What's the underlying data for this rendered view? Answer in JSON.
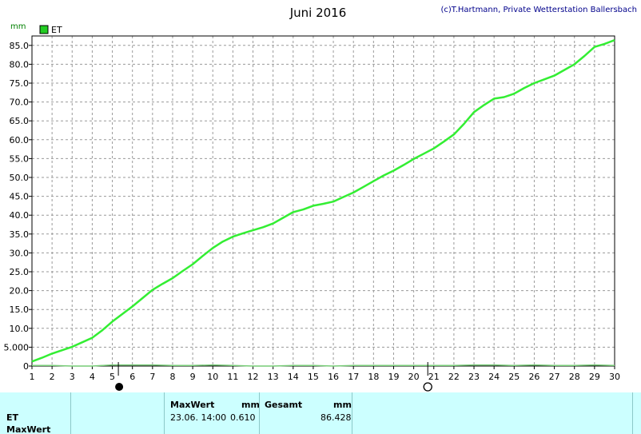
{
  "chart_data": {
    "type": "line",
    "title": "Juni 2016",
    "copyright": "(c)T.Hartmann, Private Wetterstation Ballersbach",
    "ylabel": "mm",
    "xlim": [
      1,
      30
    ],
    "ylim": [
      0,
      87.5
    ],
    "grid": true,
    "legend_position": "top-left",
    "x_ticks": [
      1,
      2,
      3,
      4,
      5,
      6,
      7,
      8,
      9,
      10,
      11,
      12,
      13,
      14,
      15,
      16,
      17,
      18,
      19,
      20,
      21,
      22,
      23,
      24,
      25,
      26,
      27,
      28,
      29,
      30
    ],
    "y_ticks": [
      {
        "value": 0,
        "label": "0"
      },
      {
        "value": 5,
        "label": "5.000"
      },
      {
        "value": 10,
        "label": "10.0"
      },
      {
        "value": 15,
        "label": "15.0"
      },
      {
        "value": 20,
        "label": "20.0"
      },
      {
        "value": 25,
        "label": "25.0"
      },
      {
        "value": 30,
        "label": "30.0"
      },
      {
        "value": 35,
        "label": "35.0"
      },
      {
        "value": 40,
        "label": "40.0"
      },
      {
        "value": 45,
        "label": "45.0"
      },
      {
        "value": 50,
        "label": "50.0"
      },
      {
        "value": 55,
        "label": "55.0"
      },
      {
        "value": 60,
        "label": "60.0"
      },
      {
        "value": 65,
        "label": "65.0"
      },
      {
        "value": 70,
        "label": "70.0"
      },
      {
        "value": 75,
        "label": "75.0"
      },
      {
        "value": 80,
        "label": "80.0"
      },
      {
        "value": 85,
        "label": "85.0"
      }
    ],
    "moon_phases": [
      {
        "x": 5.3,
        "phase": "new"
      },
      {
        "x": 20.7,
        "phase": "full"
      }
    ],
    "series": [
      {
        "name": "ET",
        "color": "#33ee33",
        "x": [
          1,
          1.5,
          2,
          2.5,
          3,
          3.5,
          4,
          4.5,
          5,
          5.5,
          6,
          6.5,
          7,
          7.5,
          8,
          8.5,
          9,
          9.5,
          10,
          10.5,
          11,
          11.5,
          12,
          12.5,
          13,
          13.5,
          14,
          14.5,
          15,
          15.5,
          16,
          16.5,
          17,
          17.5,
          18,
          18.5,
          19,
          19.5,
          20,
          20.5,
          21,
          21.5,
          22,
          22.5,
          23,
          23.5,
          24,
          24.5,
          25,
          25.5,
          26,
          26.5,
          27,
          27.5,
          28,
          28.5,
          29,
          29.5,
          30
        ],
        "values": [
          1.2,
          2.2,
          3.3,
          4.2,
          5.1,
          6.3,
          7.5,
          9.5,
          11.8,
          13.8,
          15.8,
          18.0,
          20.2,
          21.8,
          23.3,
          25.2,
          27.0,
          29.2,
          31.3,
          33.0,
          34.3,
          35.2,
          36.0,
          36.8,
          37.8,
          39.3,
          40.8,
          41.5,
          42.5,
          43.0,
          43.6,
          44.8,
          46.0,
          47.5,
          49.0,
          50.5,
          51.8,
          53.3,
          54.9,
          56.3,
          57.7,
          59.5,
          61.4,
          64.2,
          67.3,
          69.2,
          70.9,
          71.3,
          72.2,
          73.7,
          75.0,
          76.0,
          77.0,
          78.5,
          80.0,
          82.2,
          84.6,
          85.4,
          86.4
        ]
      },
      {
        "name": "",
        "color": "#77cc77",
        "x": [
          1,
          2,
          3,
          4,
          5,
          6,
          7,
          8,
          9,
          10,
          11,
          12,
          13,
          14,
          15,
          16,
          17,
          18,
          19,
          20,
          21,
          22,
          23,
          24,
          25,
          26,
          27,
          28,
          29,
          30
        ],
        "values": [
          0.15,
          0.15,
          0.0,
          0.0,
          0.3,
          0.3,
          0.3,
          0.15,
          0.15,
          0.3,
          0.15,
          0.0,
          0.0,
          0.15,
          0.15,
          0.0,
          0.15,
          0.15,
          0.15,
          0.15,
          0.15,
          0.15,
          0.3,
          0.3,
          0.15,
          0.3,
          0.15,
          0.15,
          0.3,
          0.15
        ]
      }
    ]
  },
  "legend": {
    "label": "ET",
    "color": "#22cc22"
  },
  "footer": {
    "col1_row1": "ET",
    "col1_row2": "MaxWert",
    "max_header": "MaxWert",
    "max_unit": "mm",
    "max_datetime": "23.06.  14:00",
    "max_value": "0.610",
    "total_header": "Gesamt",
    "total_unit": "mm",
    "total_value": "86.428"
  }
}
